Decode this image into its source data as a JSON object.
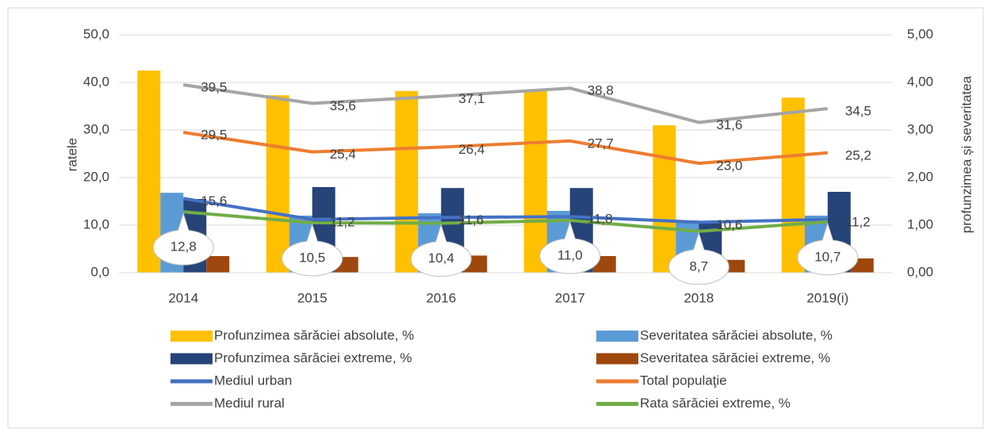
{
  "chart_data": {
    "type": "bar-line",
    "categories": [
      "2014",
      "2015",
      "2016",
      "2017",
      "2018",
      "2019(i)"
    ],
    "ylabel": "ratele",
    "y2label": "profunzimea și severitatea",
    "ylim": [
      0,
      50
    ],
    "yticks": [
      {
        "value": 0,
        "label": "0,0"
      },
      {
        "value": 10,
        "label": "10,0"
      },
      {
        "value": 20,
        "label": "20,0"
      },
      {
        "value": 30,
        "label": "30,0"
      },
      {
        "value": 40,
        "label": "40,0"
      },
      {
        "value": 50,
        "label": "50,0"
      }
    ],
    "y2lim": [
      0,
      5
    ],
    "y2ticks": [
      {
        "value": 0,
        "label": "0,00"
      },
      {
        "value": 1,
        "label": "1,00"
      },
      {
        "value": 2,
        "label": "2,00"
      },
      {
        "value": 3,
        "label": "3,00"
      },
      {
        "value": 4,
        "label": "4,00"
      },
      {
        "value": 5,
        "label": "5,00"
      }
    ],
    "grid": true,
    "series": [
      {
        "name": "Profunzimea sărăciei absolute, %",
        "type": "bar",
        "axis": "y2",
        "color": "#FFC000",
        "values": [
          4.25,
          3.73,
          3.82,
          3.85,
          3.1,
          3.68
        ]
      },
      {
        "name": "Severitatea sărăciei absolute, %",
        "type": "bar",
        "axis": "y2",
        "color": "#5B9BD5",
        "values": [
          1.68,
          1.2,
          1.25,
          1.3,
          1.1,
          1.2
        ]
      },
      {
        "name": "Profunzimea sărăciei extreme, %",
        "type": "bar",
        "axis": "y2",
        "color": "#264478",
        "values": [
          1.55,
          1.8,
          1.78,
          1.78,
          1.07,
          1.7
        ]
      },
      {
        "name": "Severitatea sărăciei extreme, %",
        "type": "bar",
        "axis": "y2",
        "color": "#9E480E",
        "values": [
          0.35,
          0.33,
          0.36,
          0.35,
          0.27,
          0.3
        ]
      },
      {
        "name": "Mediul urban",
        "type": "line",
        "color": "#4472C4",
        "values": [
          15.6,
          11.2,
          11.6,
          11.8,
          10.6,
          11.2
        ],
        "value_labels": [
          "15,6",
          "11,2",
          "11,6",
          "11,8",
          "10,6",
          "11,2"
        ]
      },
      {
        "name": "Total populaţie",
        "type": "line",
        "color": "#ED7D31",
        "values": [
          29.5,
          25.4,
          26.4,
          27.7,
          23.0,
          25.2
        ],
        "value_labels": [
          "29,5",
          "25,4",
          "26,4",
          "27,7",
          "23,0",
          "25,2"
        ]
      },
      {
        "name": "Mediul rural",
        "type": "line",
        "color": "#A5A5A5",
        "values": [
          39.5,
          35.6,
          37.1,
          38.8,
          31.6,
          34.5
        ],
        "value_labels": [
          "39,5",
          "35,6",
          "37,1",
          "38,8",
          "31,6",
          "34,5"
        ]
      },
      {
        "name": "Rata sărăciei extreme, %",
        "type": "line",
        "callout": true,
        "color": "#70AD47",
        "values": [
          12.8,
          10.5,
          10.4,
          11.0,
          8.7,
          10.7
        ],
        "value_labels": [
          "12,8",
          "10,5",
          "10,4",
          "11,0",
          "8,7",
          "10,7"
        ]
      }
    ]
  }
}
